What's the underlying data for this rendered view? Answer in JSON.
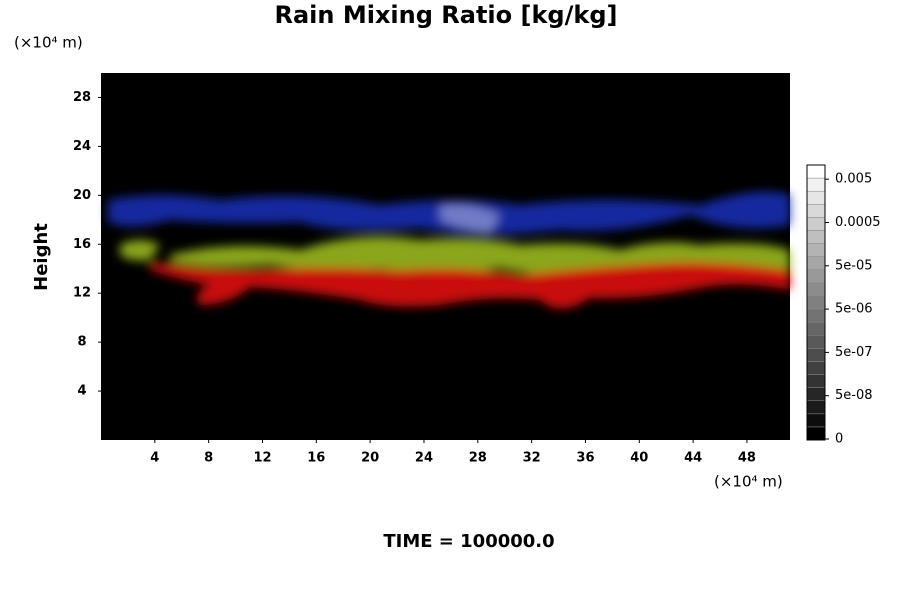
{
  "chart_data": {
    "type": "volume",
    "title": "Rain Mixing Ratio [kg/kg]",
    "ylabel": "Height",
    "x_unit": "(×10⁴ m)",
    "y_unit": "(×10⁴ m)",
    "footer": "TIME = 100000.0",
    "xlim": [
      0,
      51.2
    ],
    "xticks": [
      4,
      8,
      12,
      16,
      20,
      24,
      28,
      32,
      36,
      40,
      44,
      48
    ],
    "ylim": [
      0,
      30
    ],
    "yticks": [
      4,
      8,
      12,
      16,
      20,
      24,
      28
    ],
    "colorbar_ticks": [
      0,
      {
        "value": 5e-08,
        "label": "5e-08"
      },
      {
        "value": 5e-07,
        "label": "5e-07"
      },
      {
        "value": 5e-06,
        "label": "5e-06"
      },
      {
        "value": 5e-05,
        "label": "5e-05"
      },
      0.0005,
      0.005
    ]
  }
}
